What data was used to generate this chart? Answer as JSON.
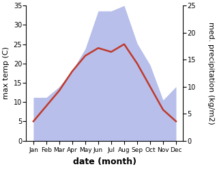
{
  "months": [
    "Jan",
    "Feb",
    "Mar",
    "Apr",
    "May",
    "Jun",
    "Jul",
    "Aug",
    "Sep",
    "Oct",
    "Nov",
    "Dec"
  ],
  "temperature": [
    5,
    9,
    13,
    18,
    22,
    24,
    23,
    25,
    20,
    14,
    8,
    5
  ],
  "rainfall": [
    8,
    8,
    10,
    13,
    17,
    24,
    24,
    25,
    18,
    14,
    7.5,
    10
  ],
  "temp_color": "#c0392b",
  "rain_color": "#b0b8e8",
  "temp_ylim": [
    0,
    35
  ],
  "rain_ylim": [
    0,
    25
  ],
  "temp_yticks": [
    0,
    5,
    10,
    15,
    20,
    25,
    30,
    35
  ],
  "rain_yticks": [
    0,
    5,
    10,
    15,
    20,
    25
  ],
  "xlabel": "date (month)",
  "ylabel_left": "max temp (C)",
  "ylabel_right": "med. precipitation (kg/m2)",
  "bg_color": "#ffffff",
  "label_fontsize": 8,
  "tick_fontsize": 7,
  "xlabel_fontsize": 9
}
